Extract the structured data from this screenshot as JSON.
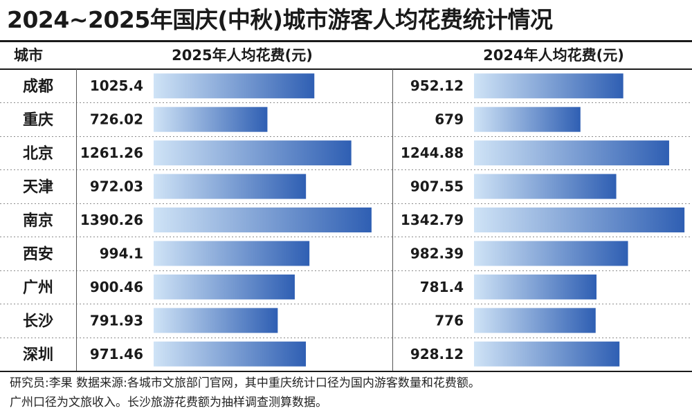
{
  "title": "2024~2025年国庆(中秋)城市游客人均花费统计情况",
  "header": {
    "city": "城市",
    "col_2025": "2025年人均花费(元)",
    "col_2024": "2024年人均花费(元)"
  },
  "colors": {
    "bar_light": "#cfe3f6",
    "bar_dark": "#2f5fb3",
    "text": "#1a1a1a"
  },
  "chart_data": {
    "type": "bar",
    "orientation": "horizontal",
    "categories": [
      "成都",
      "重庆",
      "北京",
      "天津",
      "南京",
      "西安",
      "广州",
      "长沙",
      "深圳"
    ],
    "series": [
      {
        "name": "2025年人均花费(元)",
        "values": [
          1025.4,
          726.02,
          1261.26,
          972.03,
          1390.26,
          994.1,
          900.46,
          791.93,
          971.46
        ],
        "labels": [
          "1025.4",
          "726.02",
          "1261.26",
          "972.03",
          "1390.26",
          "994.1",
          "900.46",
          "791.93",
          "971.46"
        ]
      },
      {
        "name": "2024年人均花费(元)",
        "values": [
          952.12,
          679,
          1244.88,
          907.55,
          1342.79,
          982.39,
          781.4,
          776,
          928.12
        ],
        "labels": [
          "952.12",
          "679",
          "1244.88",
          "907.55",
          "1342.79",
          "982.39",
          "781.4",
          "776",
          "928.12"
        ]
      }
    ]
  },
  "footnote": {
    "line1": "研究员:李果 数据来源:各城市文旅部门官网，其中重庆统计口径为国内游客数量和花费额。",
    "line2": "广州口径为文旅收入。长沙旅游花费额为抽样调查测算数据。"
  }
}
